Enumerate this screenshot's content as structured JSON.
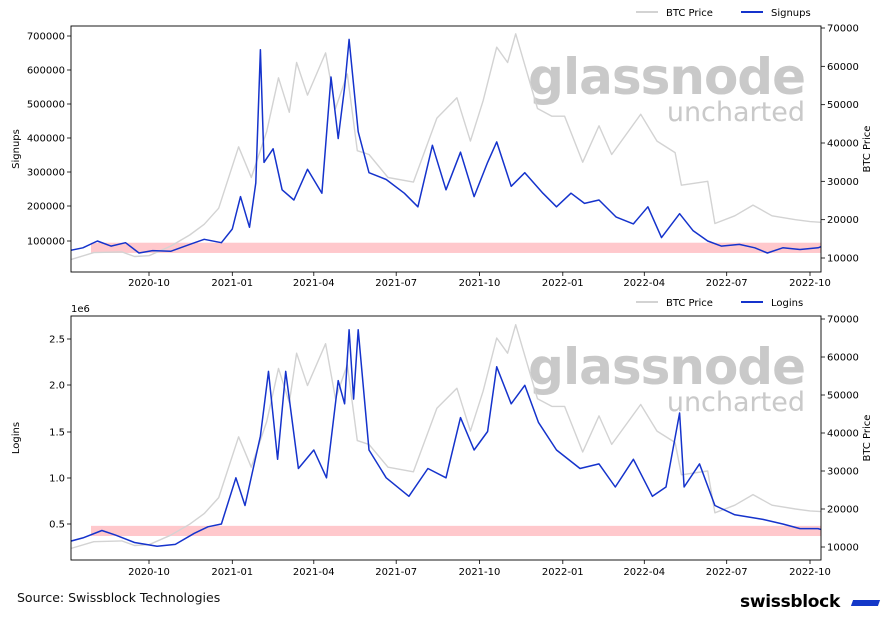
{
  "chart_data": [
    {
      "type": "line",
      "ylabel": "Signups",
      "y2label": "BTC Price",
      "ylim": [
        40000,
        710000
      ],
      "y2lim": [
        7000,
        70000
      ],
      "yticks": [
        "100000",
        "200000",
        "300000",
        "400000",
        "500000",
        "600000",
        "700000"
      ],
      "y2ticks": [
        "10000",
        "20000",
        "30000",
        "40000",
        "50000",
        "60000",
        "70000"
      ],
      "xticks": [
        "2020-10",
        "2021-01",
        "2021-04",
        "2021-07",
        "2021-10",
        "2022-01",
        "2022-04",
        "2022-07",
        "2022-10"
      ],
      "legend": [
        {
          "name": "BTC Price",
          "color": "#d3d3d3"
        },
        {
          "name": "Signups",
          "color": "#1533cc"
        }
      ],
      "legend_position": "top-right",
      "band": [
        65000,
        95000
      ],
      "band_color": "#ffc8cc",
      "grid": false,
      "series": [
        {
          "name": "BTC Price",
          "axis": "right",
          "color": "#d3d3d3",
          "points": [
            [
              "2020-07-01",
              9200
            ],
            [
              "2020-08-01",
              11400
            ],
            [
              "2020-09-01",
              11600
            ],
            [
              "2020-09-15",
              10400
            ],
            [
              "2020-10-01",
              10600
            ],
            [
              "2020-10-25",
              13100
            ],
            [
              "2020-11-15",
              16000
            ],
            [
              "2020-12-01",
              18800
            ],
            [
              "2020-12-17",
              23000
            ],
            [
              "2021-01-08",
              39000
            ],
            [
              "2021-01-22",
              31000
            ],
            [
              "2021-02-08",
              43000
            ],
            [
              "2021-02-21",
              57000
            ],
            [
              "2021-03-05",
              48000
            ],
            [
              "2021-03-13",
              61000
            ],
            [
              "2021-03-25",
              52500
            ],
            [
              "2021-04-14",
              63500
            ],
            [
              "2021-04-25",
              49000
            ],
            [
              "2021-05-08",
              58000
            ],
            [
              "2021-05-19",
              38000
            ],
            [
              "2021-06-01",
              37000
            ],
            [
              "2021-06-22",
              31000
            ],
            [
              "2021-07-20",
              29800
            ],
            [
              "2021-08-15",
              46500
            ],
            [
              "2021-09-06",
              51800
            ],
            [
              "2021-09-21",
              40500
            ],
            [
              "2021-10-05",
              51000
            ],
            [
              "2021-10-20",
              65000
            ],
            [
              "2021-11-01",
              61000
            ],
            [
              "2021-11-10",
              68500
            ],
            [
              "2021-12-04",
              49000
            ],
            [
              "2021-12-20",
              47000
            ],
            [
              "2022-01-03",
              47000
            ],
            [
              "2022-01-23",
              35000
            ],
            [
              "2022-02-10",
              44500
            ],
            [
              "2022-02-24",
              37000
            ],
            [
              "2022-03-28",
              47500
            ],
            [
              "2022-04-15",
              40500
            ],
            [
              "2022-05-05",
              37500
            ],
            [
              "2022-05-12",
              29000
            ],
            [
              "2022-06-10",
              30000
            ],
            [
              "2022-06-18",
              19000
            ],
            [
              "2022-07-10",
              21000
            ],
            [
              "2022-07-30",
              23800
            ],
            [
              "2022-08-20",
              21000
            ],
            [
              "2022-09-15",
              20000
            ],
            [
              "2022-10-01",
              19500
            ],
            [
              "2022-10-20",
              19200
            ]
          ]
        },
        {
          "name": "Signups",
          "axis": "left",
          "color": "#1533cc",
          "points": [
            [
              "2020-07-01",
              70000
            ],
            [
              "2020-07-20",
              80000
            ],
            [
              "2020-08-05",
              100000
            ],
            [
              "2020-08-20",
              85000
            ],
            [
              "2020-09-05",
              95000
            ],
            [
              "2020-09-20",
              65000
            ],
            [
              "2020-10-05",
              72000
            ],
            [
              "2020-10-25",
              70000
            ],
            [
              "2020-11-15",
              90000
            ],
            [
              "2020-12-01",
              105000
            ],
            [
              "2020-12-20",
              95000
            ],
            [
              "2021-01-01",
              135000
            ],
            [
              "2021-01-10",
              230000
            ],
            [
              "2021-01-20",
              140000
            ],
            [
              "2021-01-27",
              270000
            ],
            [
              "2021-02-01",
              660000
            ],
            [
              "2021-02-05",
              330000
            ],
            [
              "2021-02-15",
              370000
            ],
            [
              "2021-02-25",
              250000
            ],
            [
              "2021-03-10",
              220000
            ],
            [
              "2021-03-25",
              310000
            ],
            [
              "2021-04-10",
              240000
            ],
            [
              "2021-04-20",
              580000
            ],
            [
              "2021-04-28",
              400000
            ],
            [
              "2021-05-05",
              550000
            ],
            [
              "2021-05-10",
              690000
            ],
            [
              "2021-05-20",
              420000
            ],
            [
              "2021-06-01",
              300000
            ],
            [
              "2021-06-20",
              280000
            ],
            [
              "2021-07-10",
              240000
            ],
            [
              "2021-07-25",
              200000
            ],
            [
              "2021-08-10",
              380000
            ],
            [
              "2021-08-25",
              250000
            ],
            [
              "2021-09-10",
              360000
            ],
            [
              "2021-09-25",
              230000
            ],
            [
              "2021-10-10",
              330000
            ],
            [
              "2021-10-20",
              390000
            ],
            [
              "2021-11-05",
              260000
            ],
            [
              "2021-11-20",
              300000
            ],
            [
              "2021-12-10",
              240000
            ],
            [
              "2021-12-25",
              200000
            ],
            [
              "2022-01-10",
              240000
            ],
            [
              "2022-01-25",
              210000
            ],
            [
              "2022-02-10",
              220000
            ],
            [
              "2022-03-01",
              170000
            ],
            [
              "2022-03-20",
              150000
            ],
            [
              "2022-04-05",
              200000
            ],
            [
              "2022-04-20",
              110000
            ],
            [
              "2022-05-10",
              180000
            ],
            [
              "2022-05-25",
              130000
            ],
            [
              "2022-06-10",
              100000
            ],
            [
              "2022-06-25",
              85000
            ],
            [
              "2022-07-15",
              90000
            ],
            [
              "2022-08-01",
              80000
            ],
            [
              "2022-08-15",
              65000
            ],
            [
              "2022-09-01",
              80000
            ],
            [
              "2022-09-20",
              75000
            ],
            [
              "2022-10-10",
              80000
            ],
            [
              "2022-10-20",
              90000
            ]
          ]
        }
      ]
    },
    {
      "type": "line",
      "ylabel": "Logins",
      "y2label": "BTC Price",
      "scale_label": "1e6",
      "ylim": [
        200000,
        2700000
      ],
      "y2lim": [
        7000,
        70000
      ],
      "yticks": [
        "0.5",
        "1.0",
        "1.5",
        "2.0",
        "2.5"
      ],
      "y2ticks": [
        "10000",
        "20000",
        "30000",
        "40000",
        "50000",
        "60000",
        "70000"
      ],
      "xticks": [
        "2020-10",
        "2021-01",
        "2021-04",
        "2021-07",
        "2021-10",
        "2022-01",
        "2022-04",
        "2022-07",
        "2022-10"
      ],
      "legend": [
        {
          "name": "BTC Price",
          "color": "#d3d3d3"
        },
        {
          "name": "Logins",
          "color": "#1533cc"
        }
      ],
      "legend_position": "top-right",
      "band": [
        370000,
        480000
      ],
      "band_color": "#ffc8cc",
      "grid": false,
      "series": [
        {
          "name": "BTC Price",
          "axis": "right",
          "color": "#d3d3d3",
          "points": [
            [
              "2020-07-01",
              9200
            ],
            [
              "2020-08-01",
              11400
            ],
            [
              "2020-09-01",
              11600
            ],
            [
              "2020-09-15",
              10400
            ],
            [
              "2020-10-01",
              10600
            ],
            [
              "2020-10-25",
              13100
            ],
            [
              "2020-11-15",
              16000
            ],
            [
              "2020-12-01",
              18800
            ],
            [
              "2020-12-17",
              23000
            ],
            [
              "2021-01-08",
              39000
            ],
            [
              "2021-01-22",
              31000
            ],
            [
              "2021-02-08",
              43000
            ],
            [
              "2021-02-21",
              57000
            ],
            [
              "2021-03-05",
              48000
            ],
            [
              "2021-03-13",
              61000
            ],
            [
              "2021-03-25",
              52500
            ],
            [
              "2021-04-14",
              63500
            ],
            [
              "2021-04-25",
              49000
            ],
            [
              "2021-05-08",
              58000
            ],
            [
              "2021-05-19",
              38000
            ],
            [
              "2021-06-01",
              37000
            ],
            [
              "2021-06-22",
              31000
            ],
            [
              "2021-07-20",
              29800
            ],
            [
              "2021-08-15",
              46500
            ],
            [
              "2021-09-06",
              51800
            ],
            [
              "2021-09-21",
              40500
            ],
            [
              "2021-10-05",
              51000
            ],
            [
              "2021-10-20",
              65000
            ],
            [
              "2021-11-01",
              61000
            ],
            [
              "2021-11-10",
              68500
            ],
            [
              "2021-12-04",
              49000
            ],
            [
              "2021-12-20",
              47000
            ],
            [
              "2022-01-03",
              47000
            ],
            [
              "2022-01-23",
              35000
            ],
            [
              "2022-02-10",
              44500
            ],
            [
              "2022-02-24",
              37000
            ],
            [
              "2022-03-28",
              47500
            ],
            [
              "2022-04-15",
              40500
            ],
            [
              "2022-05-05",
              37500
            ],
            [
              "2022-05-12",
              29000
            ],
            [
              "2022-06-10",
              30000
            ],
            [
              "2022-06-18",
              19000
            ],
            [
              "2022-07-10",
              21000
            ],
            [
              "2022-07-30",
              23800
            ],
            [
              "2022-08-20",
              21000
            ],
            [
              "2022-09-15",
              20000
            ],
            [
              "2022-10-01",
              19500
            ],
            [
              "2022-10-20",
              19200
            ]
          ]
        },
        {
          "name": "Logins",
          "axis": "left",
          "color": "#1533cc",
          "points": [
            [
              "2020-07-01",
              300000
            ],
            [
              "2020-07-20",
              350000
            ],
            [
              "2020-08-10",
              430000
            ],
            [
              "2020-08-25",
              380000
            ],
            [
              "2020-09-15",
              300000
            ],
            [
              "2020-10-10",
              260000
            ],
            [
              "2020-10-30",
              280000
            ],
            [
              "2020-11-20",
              400000
            ],
            [
              "2020-12-05",
              470000
            ],
            [
              "2020-12-20",
              500000
            ],
            [
              "2021-01-05",
              1000000
            ],
            [
              "2021-01-15",
              700000
            ],
            [
              "2021-02-01",
              1450000
            ],
            [
              "2021-02-10",
              2150000
            ],
            [
              "2021-02-20",
              1200000
            ],
            [
              "2021-03-01",
              2150000
            ],
            [
              "2021-03-15",
              1100000
            ],
            [
              "2021-04-01",
              1300000
            ],
            [
              "2021-04-15",
              1000000
            ],
            [
              "2021-04-28",
              2050000
            ],
            [
              "2021-05-05",
              1800000
            ],
            [
              "2021-05-10",
              2600000
            ],
            [
              "2021-05-15",
              1850000
            ],
            [
              "2021-05-20",
              2600000
            ],
            [
              "2021-06-01",
              1300000
            ],
            [
              "2021-06-20",
              1000000
            ],
            [
              "2021-07-15",
              800000
            ],
            [
              "2021-08-05",
              1100000
            ],
            [
              "2021-08-25",
              1000000
            ],
            [
              "2021-09-10",
              1650000
            ],
            [
              "2021-09-25",
              1300000
            ],
            [
              "2021-10-10",
              1500000
            ],
            [
              "2021-10-20",
              2200000
            ],
            [
              "2021-11-05",
              1800000
            ],
            [
              "2021-11-20",
              2000000
            ],
            [
              "2021-12-05",
              1600000
            ],
            [
              "2021-12-25",
              1300000
            ],
            [
              "2022-01-20",
              1100000
            ],
            [
              "2022-02-10",
              1150000
            ],
            [
              "2022-02-28",
              900000
            ],
            [
              "2022-03-20",
              1200000
            ],
            [
              "2022-04-10",
              800000
            ],
            [
              "2022-04-25",
              900000
            ],
            [
              "2022-05-10",
              1700000
            ],
            [
              "2022-05-15",
              900000
            ],
            [
              "2022-06-01",
              1150000
            ],
            [
              "2022-06-18",
              700000
            ],
            [
              "2022-07-10",
              600000
            ],
            [
              "2022-08-10",
              550000
            ],
            [
              "2022-09-01",
              500000
            ],
            [
              "2022-09-20",
              450000
            ],
            [
              "2022-10-10",
              450000
            ],
            [
              "2022-10-20",
              420000
            ]
          ]
        }
      ]
    }
  ],
  "watermark": {
    "line1": "glassnode",
    "line2": "uncharted"
  },
  "source": "Source: Swissblock Technologies",
  "brand": {
    "name": "swissblock",
    "color": "#1438c8"
  }
}
